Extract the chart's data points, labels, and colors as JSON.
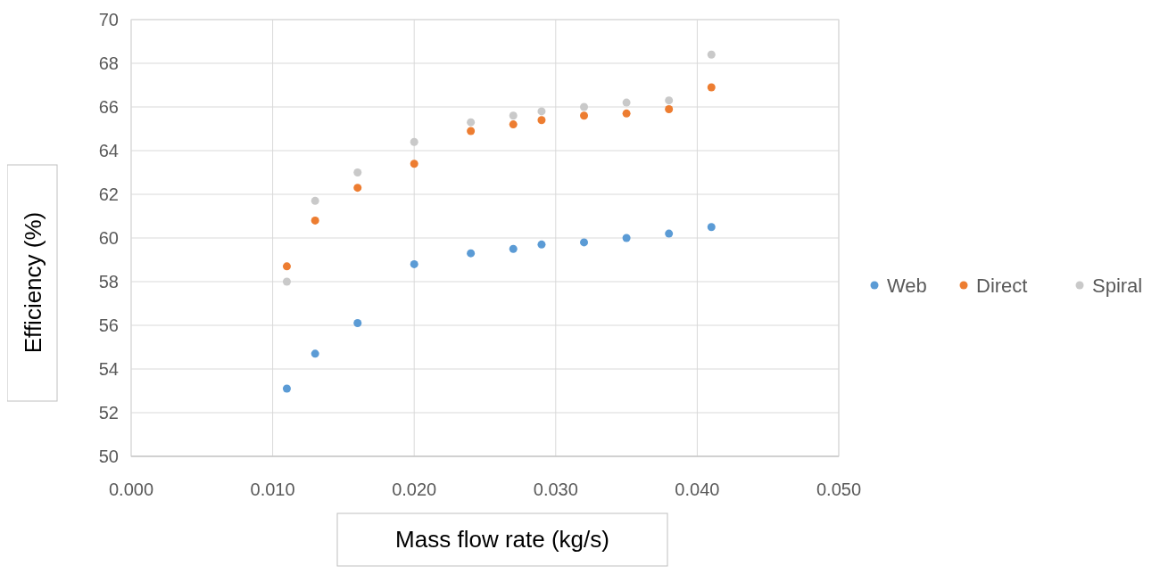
{
  "chart_data": {
    "type": "scatter",
    "xlabel": "Mass flow rate (kg/s)",
    "ylabel": "Efficiency (%)",
    "x": [
      0.011,
      0.013,
      0.016,
      0.02,
      0.024,
      0.027,
      0.029,
      0.032,
      0.035,
      0.038,
      0.041
    ],
    "series": [
      {
        "name": "Web",
        "color": "#5b9bd5",
        "values": [
          53.1,
          54.7,
          56.1,
          58.8,
          59.3,
          59.5,
          59.7,
          59.8,
          60.0,
          60.2,
          60.5
        ]
      },
      {
        "name": "Direct",
        "color": "#ed7d31",
        "values": [
          58.7,
          60.8,
          62.3,
          63.4,
          64.9,
          65.2,
          65.4,
          65.6,
          65.7,
          65.9,
          66.9
        ]
      },
      {
        "name": "Spiral",
        "color": "#c9c9c9",
        "values": [
          58.0,
          61.7,
          63.0,
          64.4,
          65.3,
          65.6,
          65.8,
          66.0,
          66.2,
          66.3,
          68.4
        ]
      }
    ],
    "xlim": [
      0,
      0.05
    ],
    "xticks": [
      {
        "value": 0,
        "label": "0.000"
      },
      {
        "value": 0.01,
        "label": "0.010"
      },
      {
        "value": 0.02,
        "label": "0.020"
      },
      {
        "value": 0.03,
        "label": "0.030"
      },
      {
        "value": 0.04,
        "label": "0.040"
      },
      {
        "value": 0.05,
        "label": "0.050"
      }
    ],
    "ylim": [
      50,
      70
    ],
    "yticks": [
      50,
      52,
      54,
      56,
      58,
      60,
      62,
      64,
      66,
      68,
      70
    ],
    "grid": true,
    "legend": "right",
    "marker": "circle"
  }
}
